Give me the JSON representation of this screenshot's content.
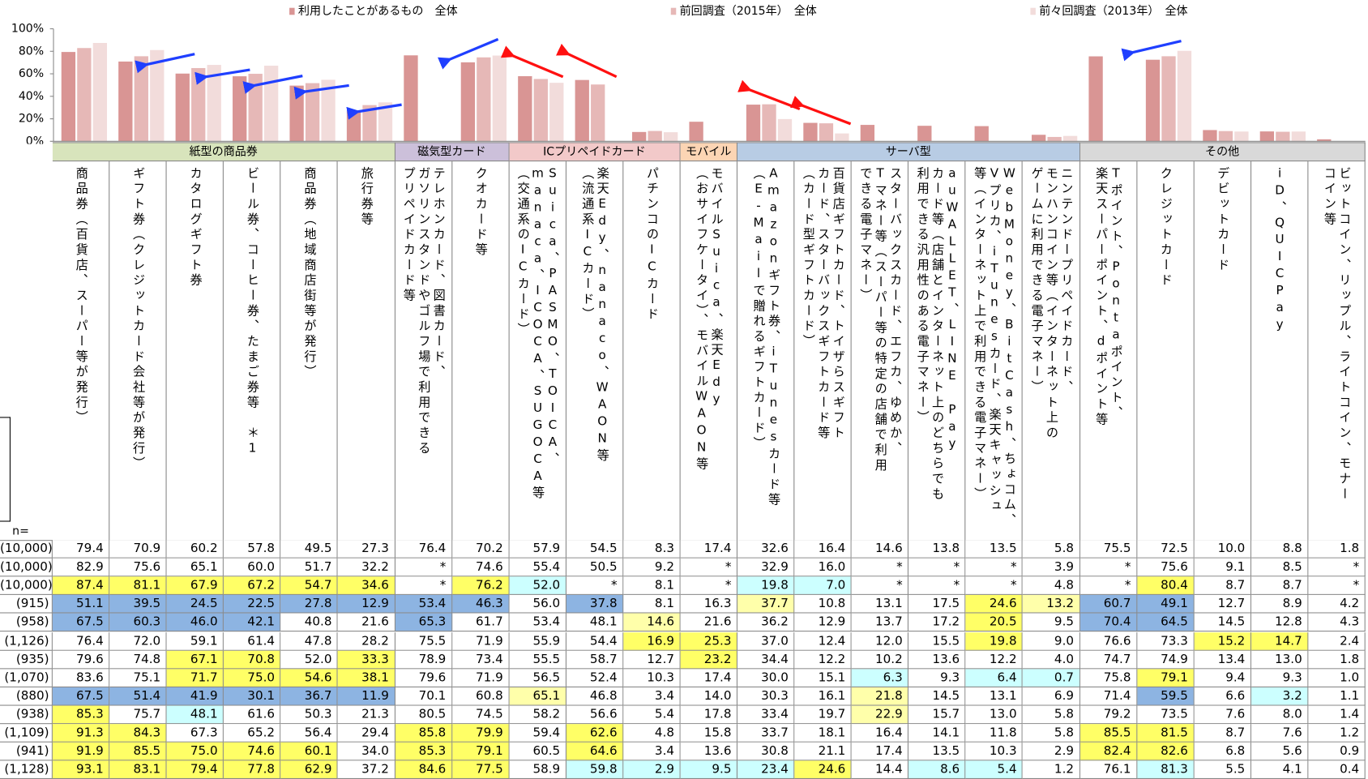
{
  "chart": {
    "ylim": [
      0,
      100
    ],
    "yticks": [
      {
        "value": 0,
        "label": "0%"
      },
      {
        "value": 20,
        "label": "20%"
      },
      {
        "value": 40,
        "label": "40%"
      },
      {
        "value": 60,
        "label": "60%"
      },
      {
        "value": 80,
        "label": "80%"
      },
      {
        "value": 100,
        "label": "100%"
      }
    ],
    "series": [
      {
        "name": "利用したことがあるもの　全体",
        "color": "#d99594",
        "row": 0
      },
      {
        "name": "前回調査（2015年）　全体",
        "color": "#e6b8b7",
        "row": 1
      },
      {
        "name": "前々回調査（2013年）　全体",
        "color": "#f2dcdb",
        "row": 2
      }
    ]
  },
  "groups": [
    {
      "label": "紙型の商品券",
      "span": 6,
      "color": "#d8e4bc"
    },
    {
      "label": "磁気型カード",
      "span": 2,
      "color": "#ccc0da"
    },
    {
      "label": "ICプリペイドカード",
      "span": 3,
      "color": "#f2c9c9"
    },
    {
      "label": "モバイル",
      "span": 1,
      "color": "#fcd5b4"
    },
    {
      "label": "サーバ型",
      "span": 6,
      "color": "#b8cce4"
    },
    {
      "label": "その他",
      "span": 5,
      "color": "#d9d9d9"
    }
  ],
  "columns": [
    {
      "lines": [
        "商品券（百貨店、スーパー等が発行）"
      ]
    },
    {
      "lines": [
        "ギフト券（クレジットカード会社等が発行）"
      ]
    },
    {
      "lines": [
        "カタログギフト券"
      ]
    },
    {
      "lines": [
        "ビール券、コーヒー券、たまご券等　＊1"
      ]
    },
    {
      "lines": [
        "商品券（地域商店街等が発行）"
      ]
    },
    {
      "lines": [
        "旅行券等"
      ]
    },
    {
      "lines": [
        "テレホンカード、図書カード、",
        "ガソリンスタンドやゴルフ場で利用できる",
        "プリペイドカード等"
      ]
    },
    {
      "lines": [
        "クオカード等"
      ]
    },
    {
      "lines": [
        "Suica、PASMO、TOICA、",
        "manaca、ICOCA、SUGOCA等",
        "（交通系のICカード）"
      ]
    },
    {
      "lines": [
        "楽天Edy、nanaco、WAON等",
        "（流通系ICカード）"
      ]
    },
    {
      "lines": [
        "パチンコのICカード"
      ]
    },
    {
      "lines": [
        "モバイルSuica、楽天Edy",
        "（おサイフケータイ）、モバイルWAON等"
      ]
    },
    {
      "lines": [
        "Amazonギフト券、iTunesカード等",
        "（E-Mailで贈れるギフトカード）"
      ]
    },
    {
      "lines": [
        "百貨店ギフトカード、トイザらスギフト",
        "カード、スターバックスギフトカード等",
        "（カード型ギフトカード）"
      ]
    },
    {
      "lines": [
        "スターバックスカード、エフカ、ゆめか、",
        "Tマネー等（スーパー等の特定の店舗で利用",
        "できる電子マネー）"
      ]
    },
    {
      "lines": [
        "auWALLET、LINE Pay",
        "カード等（店舗とインターネット上のどちらでも",
        "利用できる汎用性のある電子マネー）"
      ]
    },
    {
      "lines": [
        "WebMoney、BitCash、ちょコム、",
        "Vプリカ、iTunesカード、楽天キャッシュ",
        "等（インターネット上で利用できる電子マネー）"
      ]
    },
    {
      "lines": [
        "ニンテンドープリペイドカード、",
        "モンハンコイン等（インターネット上の",
        "ゲームに利用できる電子マネー）"
      ]
    },
    {
      "lines": [
        "Tポイント、Pontaポイント、",
        "楽天スーパーポイント、dポイント等"
      ]
    },
    {
      "lines": [
        "クレジットカード"
      ]
    },
    {
      "lines": [
        "デビットカード"
      ]
    },
    {
      "lines": [
        "iD、QUICPay"
      ]
    },
    {
      "lines": [
        "ビットコイン、リップル、ライトコイン、モナー",
        "コイン等"
      ]
    }
  ],
  "table": {
    "n_label": "n=",
    "rows": [
      {
        "n": "(10,000)",
        "values": [
          "79.4",
          "70.9",
          "60.2",
          "57.8",
          "49.5",
          "27.3",
          "76.4",
          "70.2",
          "57.9",
          "54.5",
          "8.3",
          "17.4",
          "32.6",
          "16.4",
          "14.6",
          "13.8",
          "13.5",
          "5.8",
          "75.5",
          "72.5",
          "10.0",
          "8.8",
          "1.8"
        ],
        "fills": [
          null,
          null,
          null,
          null,
          null,
          null,
          null,
          null,
          null,
          null,
          null,
          null,
          null,
          null,
          null,
          null,
          null,
          null,
          null,
          null,
          null,
          null,
          null
        ]
      },
      {
        "n": "(10,000)",
        "values": [
          "82.9",
          "75.6",
          "65.1",
          "60.0",
          "51.7",
          "32.2",
          "*",
          "74.6",
          "55.4",
          "50.5",
          "9.2",
          "*",
          "32.9",
          "16.0",
          "*",
          "*",
          "*",
          "3.9",
          "*",
          "75.6",
          "9.1",
          "8.5",
          "*"
        ],
        "fills": [
          null,
          null,
          null,
          null,
          null,
          null,
          null,
          null,
          null,
          null,
          null,
          null,
          null,
          null,
          null,
          null,
          null,
          null,
          null,
          null,
          null,
          null,
          null
        ]
      },
      {
        "n": "(10,000)",
        "values": [
          "87.4",
          "81.1",
          "67.9",
          "67.2",
          "54.7",
          "34.6",
          "*",
          "76.2",
          "52.0",
          "*",
          "8.1",
          "*",
          "19.8",
          "7.0",
          "*",
          "*",
          "*",
          "4.8",
          "*",
          "80.4",
          "8.7",
          "8.7",
          "*"
        ],
        "fills": [
          "#ffff66",
          "#ffff66",
          "#ffff66",
          "#ffff66",
          "#ffff66",
          "#ffff66",
          null,
          "#ffff66",
          "#ccffff",
          null,
          null,
          null,
          "#ccffff",
          "#ccffff",
          null,
          null,
          null,
          null,
          null,
          "#ffff66",
          null,
          null,
          null
        ]
      },
      {
        "n": "(915)",
        "values": [
          "51.1",
          "39.5",
          "24.5",
          "22.5",
          "27.8",
          "12.9",
          "53.4",
          "46.3",
          "56.0",
          "37.8",
          "8.1",
          "16.3",
          "37.7",
          "10.8",
          "13.1",
          "17.5",
          "24.6",
          "13.2",
          "60.7",
          "49.1",
          "12.7",
          "8.9",
          "4.2"
        ],
        "fills": [
          "#8db4e2",
          "#8db4e2",
          "#8db4e2",
          "#8db4e2",
          "#8db4e2",
          "#8db4e2",
          "#8db4e2",
          "#8db4e2",
          null,
          "#8db4e2",
          null,
          null,
          "#ffffaa",
          null,
          null,
          null,
          "#ffff66",
          "#ffffaa",
          "#8db4e2",
          "#8db4e2",
          null,
          null,
          null
        ]
      },
      {
        "n": "(958)",
        "values": [
          "67.5",
          "60.3",
          "46.0",
          "42.1",
          "40.8",
          "21.6",
          "65.3",
          "61.7",
          "53.4",
          "48.1",
          "14.6",
          "21.6",
          "36.2",
          "12.9",
          "13.7",
          "17.2",
          "20.5",
          "9.5",
          "70.4",
          "64.5",
          "14.5",
          "12.8",
          "4.3"
        ],
        "fills": [
          "#8db4e2",
          "#8db4e2",
          "#8db4e2",
          "#8db4e2",
          null,
          null,
          "#8db4e2",
          null,
          null,
          null,
          "#ffffaa",
          null,
          null,
          null,
          null,
          null,
          "#ffff66",
          null,
          "#8db4e2",
          "#8db4e2",
          null,
          null,
          null
        ]
      },
      {
        "n": "(1,126)",
        "values": [
          "76.4",
          "72.0",
          "59.1",
          "61.4",
          "47.8",
          "28.2",
          "75.5",
          "71.9",
          "55.9",
          "54.4",
          "16.9",
          "25.3",
          "37.0",
          "12.4",
          "12.0",
          "15.5",
          "19.8",
          "9.0",
          "76.6",
          "73.3",
          "15.2",
          "14.7",
          "2.4"
        ],
        "fills": [
          null,
          null,
          null,
          null,
          null,
          null,
          null,
          null,
          null,
          null,
          "#ffff66",
          "#ffff66",
          null,
          null,
          null,
          null,
          "#ffff66",
          null,
          null,
          null,
          "#ffff66",
          "#ffff66",
          null
        ]
      },
      {
        "n": "(935)",
        "values": [
          "79.6",
          "74.8",
          "67.1",
          "70.8",
          "52.0",
          "33.3",
          "78.9",
          "73.4",
          "55.5",
          "58.7",
          "12.7",
          "23.2",
          "34.4",
          "12.2",
          "10.2",
          "13.6",
          "12.2",
          "4.0",
          "74.7",
          "74.9",
          "13.4",
          "13.0",
          "1.8"
        ],
        "fills": [
          null,
          null,
          "#ffff66",
          "#ffff66",
          null,
          "#ffff66",
          null,
          null,
          null,
          null,
          null,
          "#ffff66",
          null,
          null,
          null,
          null,
          null,
          null,
          null,
          null,
          null,
          null,
          null
        ]
      },
      {
        "n": "(1,070)",
        "values": [
          "83.6",
          "75.1",
          "71.7",
          "75.0",
          "54.6",
          "38.1",
          "79.6",
          "71.9",
          "56.5",
          "52.4",
          "10.3",
          "17.4",
          "30.0",
          "15.1",
          "6.3",
          "9.3",
          "6.4",
          "0.7",
          "75.8",
          "79.1",
          "9.4",
          "9.3",
          "1.0"
        ],
        "fills": [
          null,
          null,
          "#ffff66",
          "#ffff66",
          "#ffff66",
          "#ffff66",
          null,
          null,
          null,
          null,
          null,
          null,
          null,
          null,
          "#ccffff",
          null,
          "#ccffff",
          "#ccffff",
          null,
          "#ffff66",
          null,
          null,
          null
        ]
      },
      {
        "n": "(880)",
        "values": [
          "67.5",
          "51.4",
          "41.9",
          "30.1",
          "36.7",
          "11.9",
          "70.1",
          "60.8",
          "65.1",
          "46.8",
          "3.4",
          "14.0",
          "30.3",
          "16.1",
          "21.8",
          "14.5",
          "13.1",
          "6.9",
          "71.4",
          "59.5",
          "6.6",
          "3.2",
          "1.1"
        ],
        "fills": [
          "#8db4e2",
          "#8db4e2",
          "#8db4e2",
          "#8db4e2",
          "#8db4e2",
          "#8db4e2",
          null,
          null,
          "#ffffaa",
          null,
          null,
          null,
          null,
          null,
          "#ffffaa",
          null,
          null,
          null,
          null,
          "#8db4e2",
          null,
          "#ccffff",
          null
        ]
      },
      {
        "n": "(938)",
        "values": [
          "85.3",
          "75.7",
          "48.1",
          "61.6",
          "50.3",
          "21.3",
          "80.5",
          "74.5",
          "58.2",
          "56.6",
          "5.4",
          "17.8",
          "33.4",
          "19.7",
          "22.9",
          "15.7",
          "13.0",
          "5.8",
          "79.2",
          "73.5",
          "7.6",
          "8.0",
          "1.4"
        ],
        "fills": [
          "#ffff66",
          null,
          "#ccffff",
          null,
          null,
          null,
          null,
          null,
          null,
          null,
          null,
          null,
          null,
          null,
          "#ffffaa",
          null,
          null,
          null,
          null,
          null,
          null,
          null,
          null
        ]
      },
      {
        "n": "(1,109)",
        "values": [
          "91.3",
          "84.3",
          "67.3",
          "65.2",
          "56.4",
          "29.4",
          "85.8",
          "79.9",
          "59.4",
          "62.6",
          "4.8",
          "15.8",
          "33.7",
          "18.1",
          "16.4",
          "14.1",
          "11.8",
          "5.8",
          "85.5",
          "81.5",
          "8.7",
          "7.6",
          "1.2"
        ],
        "fills": [
          "#ffff66",
          "#ffff66",
          null,
          null,
          null,
          null,
          "#ffff66",
          "#ffff66",
          null,
          "#ffff66",
          null,
          null,
          null,
          null,
          null,
          null,
          null,
          null,
          "#ffff66",
          "#ffff66",
          null,
          null,
          null
        ]
      },
      {
        "n": "(941)",
        "values": [
          "91.9",
          "85.5",
          "75.0",
          "74.6",
          "60.1",
          "34.0",
          "85.3",
          "79.1",
          "60.5",
          "64.6",
          "3.4",
          "13.6",
          "30.8",
          "21.1",
          "17.4",
          "13.5",
          "10.3",
          "2.9",
          "82.4",
          "82.6",
          "6.8",
          "5.6",
          "0.9"
        ],
        "fills": [
          "#ffff66",
          "#ffff66",
          "#ffff66",
          "#ffff66",
          "#ffff66",
          null,
          "#ffff66",
          "#ffff66",
          null,
          "#ffff66",
          null,
          null,
          null,
          null,
          null,
          null,
          null,
          null,
          "#ffff66",
          "#ffff66",
          null,
          null,
          null
        ]
      },
      {
        "n": "(1,128)",
        "values": [
          "93.1",
          "83.1",
          "79.4",
          "77.8",
          "62.9",
          "37.2",
          "84.6",
          "77.5",
          "58.9",
          "59.8",
          "2.9",
          "9.5",
          "23.4",
          "24.6",
          "14.4",
          "8.6",
          "5.4",
          "1.2",
          "76.1",
          "81.3",
          "5.5",
          "4.1",
          "0.4"
        ],
        "fills": [
          "#ffff66",
          "#ffff66",
          "#ffff66",
          "#ffff66",
          "#ffff66",
          null,
          "#ffff66",
          "#ffff66",
          null,
          "#ccffff",
          "#ccffff",
          "#ccffff",
          "#ccffff",
          "#ffff66",
          null,
          "#ccffff",
          "#ccffff",
          null,
          null,
          "#ccffff",
          null,
          null,
          null
        ]
      }
    ]
  }
}
